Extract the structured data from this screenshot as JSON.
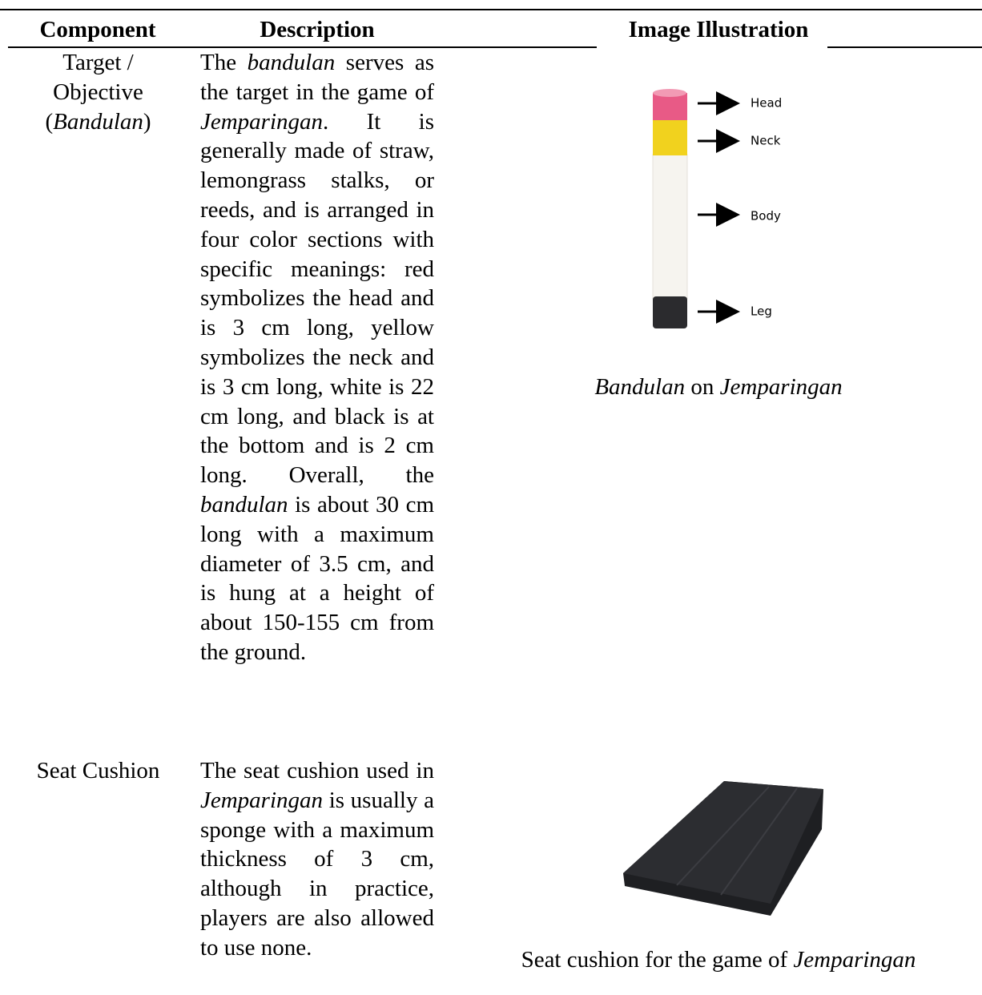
{
  "header": {
    "component": "Component",
    "description": "Description",
    "illustration": "Image Illustration"
  },
  "rows": [
    {
      "component": [
        {
          "text": "Target / Objective (",
          "italic": false
        },
        {
          "text": "Bandulan",
          "italic": true
        },
        {
          "text": ")",
          "italic": false
        }
      ],
      "description": [
        {
          "text": "The ",
          "italic": false
        },
        {
          "text": "bandulan",
          "italic": true
        },
        {
          "text": " serves as the target in the game of ",
          "italic": false
        },
        {
          "text": "Jemparingan",
          "italic": true
        },
        {
          "text": ". It is generally made of straw, lemongrass stalks, or reeds, and is arranged in four color sections with specific meanings: red symbolizes the head and is 3 cm long, yellow symbolizes the neck and is 3 cm long, white is 22 cm long, and black is at the bottom and is 2 cm long. Overall, the ",
          "italic": false
        },
        {
          "text": "bandulan",
          "italic": true
        },
        {
          "text": " is about 30 cm long with a maximum diameter of 3.5 cm, and is hung at a height of about 150-155 cm from the ground.",
          "italic": false
        }
      ],
      "image_labels": [
        "Head",
        "Neck",
        "Body",
        "Leg"
      ],
      "caption": [
        {
          "text": "Bandulan",
          "italic": true
        },
        {
          "text": " on ",
          "italic": false
        },
        {
          "text": "Jemparingan",
          "italic": true
        }
      ]
    },
    {
      "component": [
        {
          "text": "Seat Cushion",
          "italic": false
        }
      ],
      "description": [
        {
          "text": "The seat cushion used in ",
          "italic": false
        },
        {
          "text": "Jemparingan",
          "italic": true
        },
        {
          "text": " is usually a sponge with a maximum thickness of 3 cm, although in practice, players are also allowed to use none.",
          "italic": false
        }
      ],
      "caption": [
        {
          "text": "Seat cushion for the game of ",
          "italic": false
        },
        {
          "text": "Jemparingan",
          "italic": true
        }
      ]
    }
  ]
}
